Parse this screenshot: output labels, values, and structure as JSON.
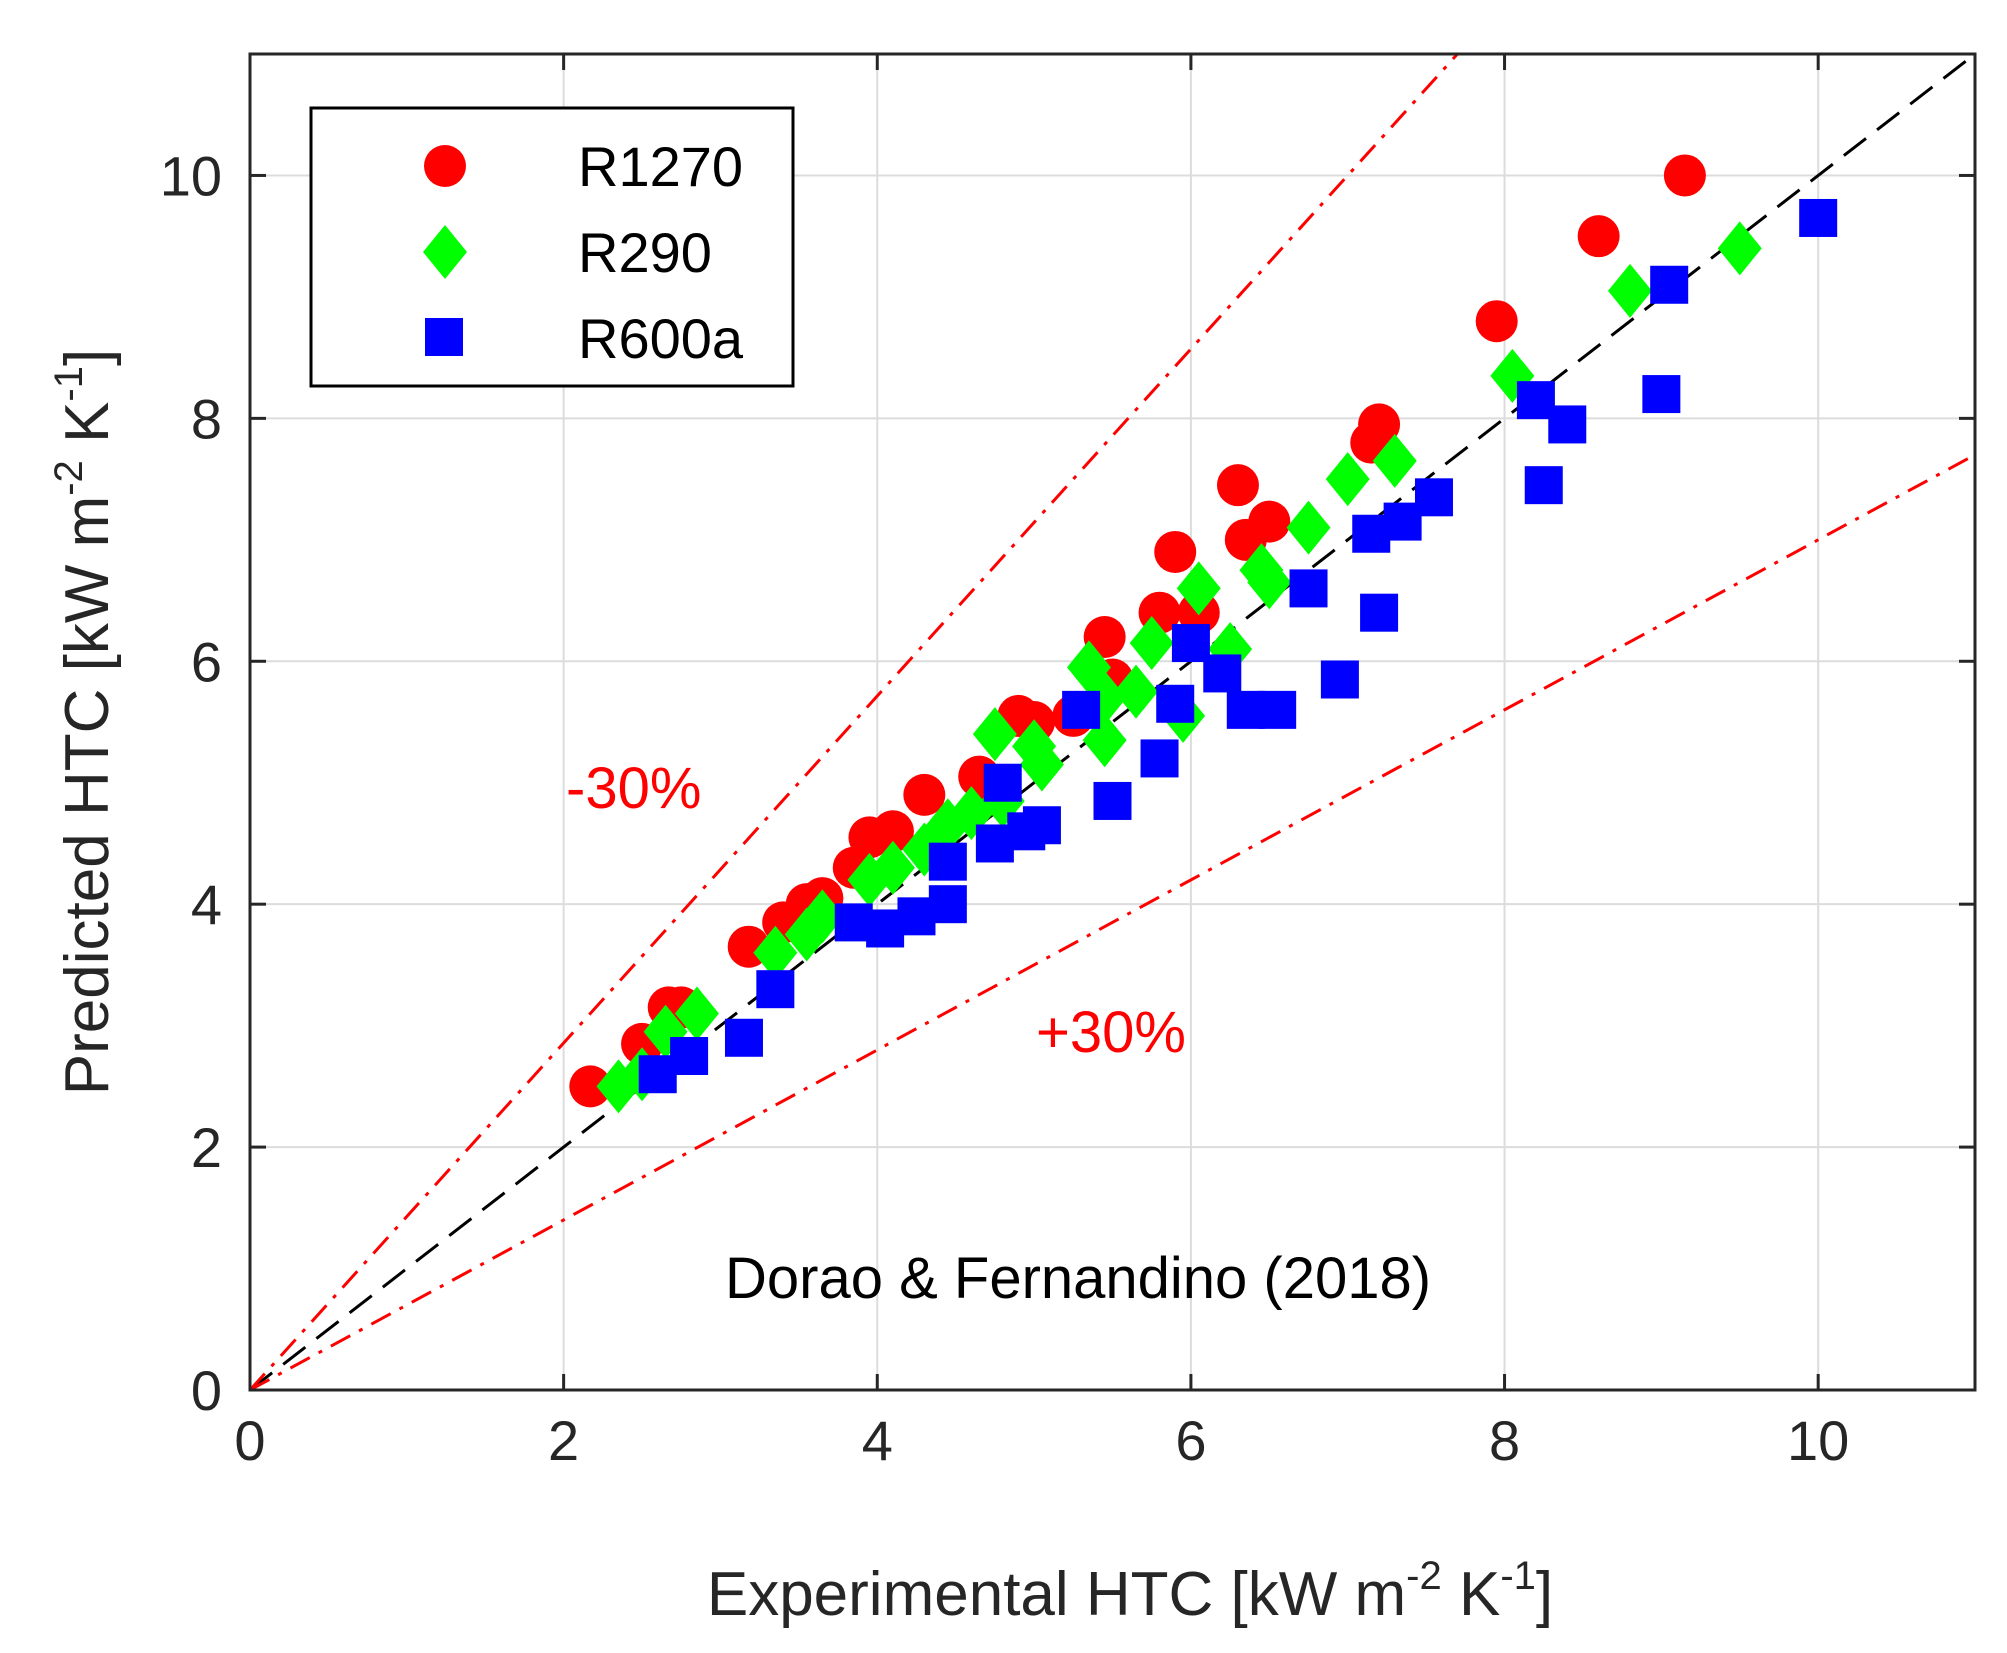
{
  "chart_data": {
    "type": "scatter",
    "title": "",
    "xlabel": "Experimental HTC [kW m^-2 K^-1]",
    "xlabel_parts": {
      "main": "Experimental HTC [kW m",
      "exp1": "-2",
      "mid": " K",
      "exp2": "-1",
      "end": "]"
    },
    "ylabel": "Predicted HTC [kW m^-2 K^-1]",
    "ylabel_parts": {
      "main": "Predicted HTC [kW m",
      "exp1": "-2",
      "mid": " K",
      "exp2": "-1",
      "end": "]"
    },
    "xlim": [
      0,
      11
    ],
    "ylim": [
      0,
      11
    ],
    "xticks": [
      0,
      2,
      4,
      6,
      8,
      10
    ],
    "yticks": [
      0,
      2,
      4,
      6,
      8,
      10
    ],
    "xtick_labels": [
      "0",
      "2",
      "4",
      "6",
      "8",
      "10"
    ],
    "ytick_labels": [
      "0",
      "2",
      "4",
      "6",
      "8",
      "10"
    ],
    "grid": true,
    "legend_position": "top-left",
    "reference_lines": [
      {
        "name": "parity",
        "slope": 1.0,
        "style": "dashed",
        "color": "#000000"
      },
      {
        "name": "minus-30",
        "slope": 1.4286,
        "style": "dash-dot",
        "color": "#ff0000"
      },
      {
        "name": "plus-30",
        "slope": 0.7,
        "style": "dash-dot",
        "color": "#ff0000"
      }
    ],
    "annotations": [
      {
        "text": "-30%",
        "x": 2.0,
        "y": 4.9,
        "color": "#ff0000"
      },
      {
        "text": "+30%",
        "x": 5.0,
        "y": 2.85,
        "color": "#ff0000"
      },
      {
        "text": "Dorao & Fernandino (2018)",
        "x": 3.1,
        "y": 0.85,
        "color": "#000000"
      }
    ],
    "series": [
      {
        "name": "R1270",
        "marker": "circle",
        "color": "#ff0000",
        "points": [
          [
            2.17,
            2.5
          ],
          [
            2.5,
            2.85
          ],
          [
            2.67,
            3.15
          ],
          [
            2.75,
            3.15
          ],
          [
            3.18,
            3.65
          ],
          [
            3.4,
            3.85
          ],
          [
            3.55,
            4.0
          ],
          [
            3.65,
            4.05
          ],
          [
            3.85,
            4.3
          ],
          [
            3.95,
            4.55
          ],
          [
            4.1,
            4.6
          ],
          [
            4.3,
            4.9
          ],
          [
            4.65,
            5.05
          ],
          [
            4.75,
            4.9
          ],
          [
            4.9,
            5.55
          ],
          [
            5.0,
            5.5
          ],
          [
            5.25,
            5.55
          ],
          [
            5.45,
            6.2
          ],
          [
            5.5,
            5.85
          ],
          [
            5.8,
            6.4
          ],
          [
            5.9,
            6.9
          ],
          [
            6.05,
            6.4
          ],
          [
            6.3,
            7.45
          ],
          [
            6.35,
            7.0
          ],
          [
            6.5,
            7.15
          ],
          [
            7.15,
            7.8
          ],
          [
            7.2,
            7.95
          ],
          [
            7.95,
            8.8
          ],
          [
            8.6,
            9.5
          ],
          [
            9.15,
            10.0
          ]
        ]
      },
      {
        "name": "R290",
        "marker": "diamond",
        "color": "#00ff00",
        "points": [
          [
            2.35,
            2.5
          ],
          [
            2.5,
            2.6
          ],
          [
            2.65,
            2.95
          ],
          [
            2.85,
            3.1
          ],
          [
            3.35,
            3.6
          ],
          [
            3.55,
            3.75
          ],
          [
            3.65,
            3.9
          ],
          [
            3.95,
            4.2
          ],
          [
            4.1,
            4.3
          ],
          [
            4.3,
            4.45
          ],
          [
            4.45,
            4.65
          ],
          [
            4.6,
            4.75
          ],
          [
            4.75,
            5.4
          ],
          [
            4.8,
            4.85
          ],
          [
            5.0,
            5.3
          ],
          [
            5.05,
            5.15
          ],
          [
            5.35,
            5.95
          ],
          [
            5.45,
            5.35
          ],
          [
            5.45,
            5.7
          ],
          [
            5.65,
            5.75
          ],
          [
            5.75,
            6.15
          ],
          [
            5.95,
            5.55
          ],
          [
            6.05,
            6.6
          ],
          [
            6.25,
            6.1
          ],
          [
            6.45,
            6.75
          ],
          [
            6.5,
            6.65
          ],
          [
            6.75,
            7.1
          ],
          [
            7.0,
            7.5
          ],
          [
            7.3,
            7.65
          ],
          [
            8.05,
            8.35
          ],
          [
            8.8,
            9.05
          ],
          [
            9.5,
            9.4
          ]
        ]
      },
      {
        "name": "R600a",
        "marker": "square",
        "color": "#0000ff",
        "points": [
          [
            2.6,
            2.6
          ],
          [
            2.8,
            2.75
          ],
          [
            3.15,
            2.9
          ],
          [
            3.35,
            3.3
          ],
          [
            3.85,
            3.85
          ],
          [
            4.05,
            3.8
          ],
          [
            4.25,
            3.9
          ],
          [
            4.45,
            4.0
          ],
          [
            4.45,
            4.35
          ],
          [
            4.75,
            4.5
          ],
          [
            4.8,
            5.0
          ],
          [
            4.95,
            4.6
          ],
          [
            5.05,
            4.65
          ],
          [
            5.3,
            5.6
          ],
          [
            5.5,
            4.85
          ],
          [
            5.8,
            5.2
          ],
          [
            5.9,
            5.65
          ],
          [
            6.0,
            6.15
          ],
          [
            6.2,
            5.9
          ],
          [
            6.35,
            5.6
          ],
          [
            6.55,
            5.6
          ],
          [
            6.75,
            6.6
          ],
          [
            6.95,
            5.85
          ],
          [
            7.15,
            7.05
          ],
          [
            7.2,
            6.4
          ],
          [
            7.35,
            7.15
          ],
          [
            7.55,
            7.35
          ],
          [
            8.2,
            8.15
          ],
          [
            8.25,
            7.45
          ],
          [
            8.4,
            7.95
          ],
          [
            9.0,
            8.2
          ],
          [
            9.05,
            9.1
          ],
          [
            10.0,
            9.65
          ]
        ]
      }
    ]
  },
  "colors": {
    "r1270": "#ff0000",
    "r290": "#00ff00",
    "r600a": "#0000ff",
    "grid": "#dcdcdc",
    "axis": "#262626"
  }
}
